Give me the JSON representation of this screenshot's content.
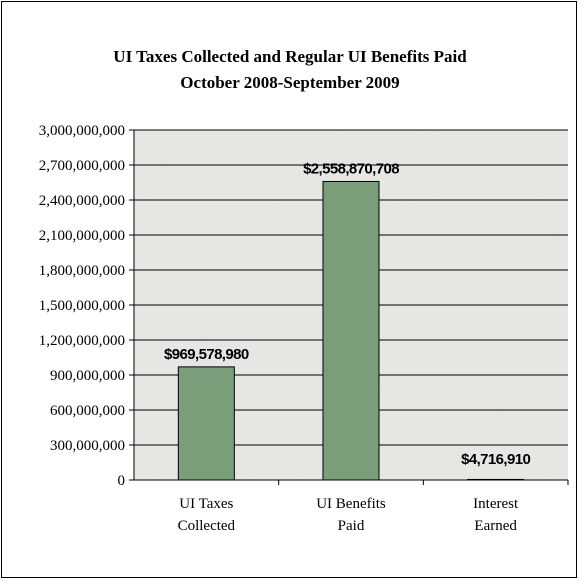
{
  "chart_data": {
    "type": "bar",
    "title": "UI Taxes Collected and Regular UI Benefits Paid",
    "subtitle": "October 2008-September 2009",
    "categories": [
      [
        "UI Taxes",
        "Collected"
      ],
      [
        "UI Benefits",
        "Paid"
      ],
      [
        "Interest",
        "Earned"
      ]
    ],
    "values": [
      969578980,
      2558870708,
      4716910
    ],
    "data_labels": [
      "$969,578,980",
      "$2,558,870,708",
      "$4,716,910"
    ],
    "ylim": [
      0,
      3000000000
    ],
    "y_ticks": [
      "0",
      "300,000,000",
      "600,000,000",
      "900,000,000",
      "1,200,000,000",
      "1,500,000,000",
      "1,800,000,000",
      "2,100,000,000",
      "2,400,000,000",
      "2,700,000,000",
      "3,000,000,000"
    ],
    "grid": true,
    "colors": {
      "bar": "#7a9e7a",
      "bar_edge": "#000000",
      "plot_bg": "#e6e6e2"
    }
  }
}
